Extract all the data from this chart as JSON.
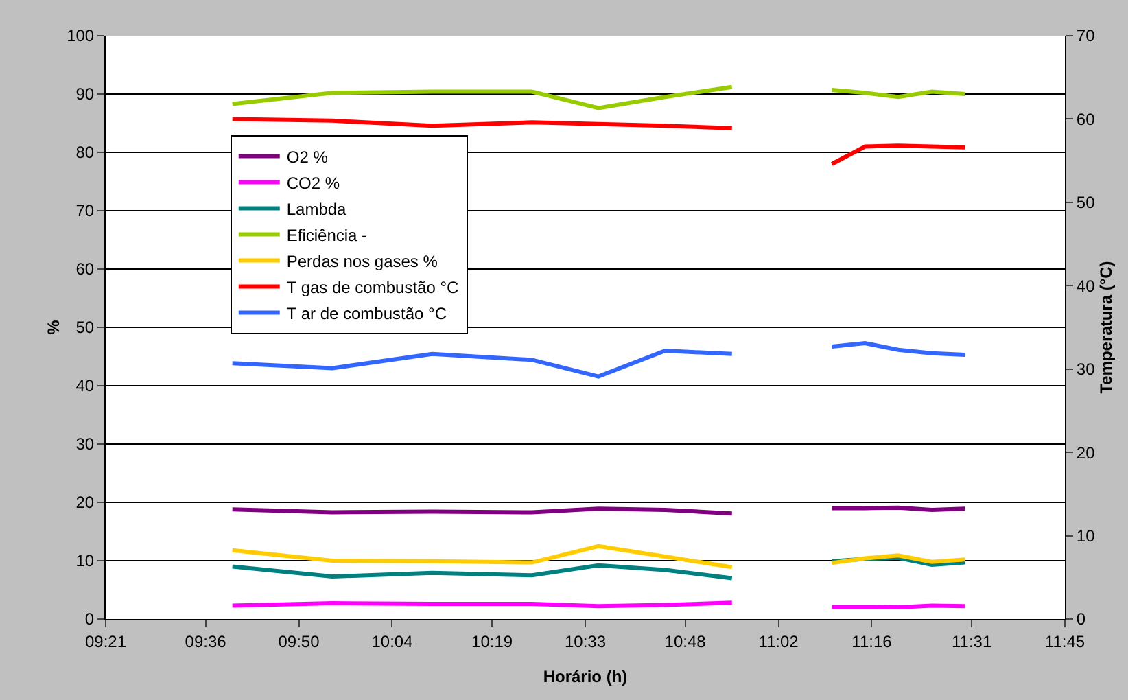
{
  "chart_data": {
    "type": "line",
    "xlabel": "Horário (h)",
    "ylabel": "%",
    "y2label": "Temperatura (°C)",
    "x": [
      9.667,
      9.917,
      10.167,
      10.417,
      10.583,
      10.75,
      10.917,
      11.083,
      11.167,
      11.25,
      11.333,
      11.417,
      11.5
    ],
    "series": [
      {
        "name": "O2 %",
        "color": "#800080",
        "values": [
          18.8,
          18.3,
          18.4,
          18.3,
          18.9,
          18.7,
          18.1,
          null,
          19.0,
          19.0,
          19.1,
          18.7,
          18.9
        ]
      },
      {
        "name": "CO2 %",
        "color": "#ff00ff",
        "values": [
          2.3,
          2.7,
          2.6,
          2.6,
          2.2,
          2.4,
          2.8,
          null,
          2.1,
          2.1,
          2.0,
          2.3,
          2.2
        ]
      },
      {
        "name": "Lambda",
        "color": "#008080",
        "values": [
          9.0,
          7.3,
          7.9,
          7.5,
          9.2,
          8.4,
          7.0,
          null,
          9.9,
          10.3,
          10.5,
          9.3,
          9.7
        ]
      },
      {
        "name": "Eficiência -",
        "color": "#99cc00",
        "values": [
          88.3,
          90.2,
          90.4,
          90.4,
          87.6,
          89.5,
          91.2,
          null,
          90.7,
          90.2,
          89.5,
          90.4,
          90.0
        ]
      },
      {
        "name": "Perdas nos gases %",
        "color": "#ffcc00",
        "values": [
          11.8,
          10.0,
          9.9,
          9.7,
          12.5,
          10.7,
          8.9,
          null,
          9.6,
          10.4,
          10.9,
          9.8,
          10.2
        ]
      },
      {
        "name": "T gas de combustão °C",
        "color": "#ff0000",
        "axis": "y2",
        "values": [
          60.0,
          59.8,
          59.2,
          59.6,
          59.4,
          59.2,
          58.9,
          null,
          54.6,
          56.7,
          56.8,
          56.7,
          56.6
        ]
      },
      {
        "name": "T ar de combustão °C",
        "color": "#3366ff",
        "axis": "y2",
        "values": [
          30.7,
          30.1,
          31.8,
          31.1,
          29.1,
          32.2,
          31.8,
          null,
          32.7,
          33.1,
          32.3,
          31.9,
          31.7
        ]
      }
    ],
    "xlim": [
      9.35,
      11.75
    ],
    "xticks": [
      {
        "value": 9.35,
        "label": "09:21"
      },
      {
        "value": 9.6,
        "label": "09:36"
      },
      {
        "value": 9.8333,
        "label": "09:50"
      },
      {
        "value": 10.0667,
        "label": "10:04"
      },
      {
        "value": 10.3167,
        "label": "10:19"
      },
      {
        "value": 10.55,
        "label": "10:33"
      },
      {
        "value": 10.8,
        "label": "10:48"
      },
      {
        "value": 11.0333,
        "label": "11:02"
      },
      {
        "value": 11.2667,
        "label": "11:16"
      },
      {
        "value": 11.5167,
        "label": "11:31"
      },
      {
        "value": 11.75,
        "label": "11:45"
      }
    ],
    "ylim": [
      0,
      100
    ],
    "yticks": [
      0,
      10,
      20,
      30,
      40,
      50,
      60,
      70,
      80,
      90,
      100
    ],
    "y2lim": [
      0,
      70
    ],
    "y2ticks": [
      0,
      10,
      20,
      30,
      40,
      50,
      60,
      70
    ],
    "grid": "y",
    "legend": "top left",
    "marker": "none",
    "line_style": "solid"
  }
}
